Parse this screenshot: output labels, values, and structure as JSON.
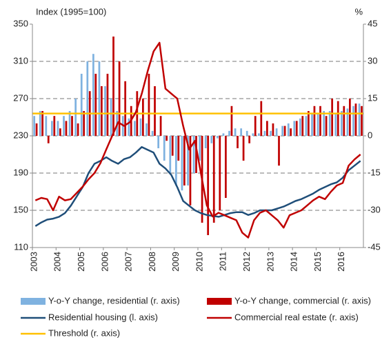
{
  "chart_data": {
    "type": "combo",
    "y_label": "Index (1995=100)",
    "y2_label": "%",
    "categories": [
      "2003",
      null,
      null,
      null,
      "2004",
      null,
      null,
      null,
      "2005",
      null,
      null,
      null,
      "2006",
      null,
      null,
      null,
      "2007",
      null,
      null,
      null,
      "2008",
      null,
      null,
      null,
      "2009",
      null,
      null,
      null,
      "2010",
      null,
      null,
      null,
      "2011",
      null,
      null,
      null,
      "2012",
      null,
      null,
      null,
      "2013",
      null,
      null,
      null,
      "2014",
      null,
      null,
      null,
      "2015",
      null,
      null,
      null,
      "2016",
      null,
      null,
      null
    ],
    "ylim": [
      110,
      350
    ],
    "yticks": [
      110,
      150,
      190,
      230,
      270,
      310,
      350
    ],
    "y2lim": [
      -45,
      45
    ],
    "y2ticks": [
      -45,
      -30,
      -15,
      0,
      15,
      30,
      45
    ],
    "grid": true,
    "series": [
      {
        "name": "Y-o-Y change, residential (r. axis)",
        "type": "bar",
        "axis": "y2",
        "color": "#7fb2e0",
        "values": [
          8,
          10,
          8,
          6,
          6,
          8,
          10,
          15,
          25,
          30,
          33,
          30,
          20,
          15,
          10,
          8,
          7,
          6,
          7,
          5,
          2,
          -5,
          -10,
          -15,
          -20,
          -22,
          -20,
          -15,
          -10,
          -5,
          -3,
          -1,
          1,
          2,
          3,
          3,
          2,
          1,
          1,
          2,
          2,
          3,
          4,
          5,
          6,
          7,
          8,
          9,
          9,
          10,
          10,
          9,
          10,
          11,
          12,
          13
        ]
      },
      {
        "name": "Y-o-Y change, commercial (r. axis)",
        "type": "bar",
        "axis": "y2",
        "color": "#c00000",
        "values": [
          5,
          10,
          -3,
          8,
          3,
          6,
          8,
          5,
          10,
          18,
          25,
          20,
          25,
          40,
          30,
          22,
          12,
          18,
          15,
          25,
          20,
          8,
          -2,
          -8,
          -10,
          -20,
          -28,
          -15,
          -35,
          -40,
          -35,
          -30,
          -25,
          12,
          -5,
          -10,
          -3,
          8,
          14,
          6,
          5,
          -12,
          4,
          3,
          6,
          8,
          10,
          12,
          12,
          8,
          15,
          14,
          12,
          15,
          13,
          12
        ]
      },
      {
        "name": "Residential housing (l. axis)",
        "type": "line",
        "axis": "y",
        "color": "#1f4e79",
        "values": [
          133,
          137,
          140,
          141,
          143,
          147,
          155,
          165,
          175,
          190,
          200,
          203,
          207,
          203,
          200,
          205,
          207,
          212,
          218,
          215,
          212,
          200,
          195,
          188,
          175,
          160,
          155,
          150,
          147,
          145,
          144,
          143,
          145,
          147,
          148,
          148,
          145,
          147,
          150,
          150,
          150,
          152,
          154,
          157,
          160,
          162,
          165,
          168,
          172,
          175,
          178,
          180,
          185,
          193,
          198,
          203
        ]
      },
      {
        "name": "Commercial real estate (r. axis)",
        "type": "line",
        "axis": "y2",
        "color": "#c00000",
        "values": [
          -26,
          -25,
          -25.5,
          -30,
          -24.5,
          -26,
          -25.5,
          -23,
          -20.5,
          -17.5,
          -15,
          -11,
          -5.5,
          0,
          5.5,
          4,
          5.5,
          9.5,
          17,
          26,
          34,
          37.5,
          19,
          17,
          15,
          4,
          -5.5,
          -2,
          -15,
          -28,
          -32.5,
          -31,
          -32,
          -33,
          -34,
          -39,
          -41,
          -34,
          -31,
          -30,
          -32,
          -34,
          -37,
          -32,
          -31,
          -30,
          -28,
          -26,
          -24.5,
          -25.5,
          -22.5,
          -20,
          -19,
          -12,
          -9.5,
          -7.5
        ]
      }
    ],
    "threshold": {
      "name": "Threshold (r. axis)",
      "value": 9,
      "color": "#ffc000"
    }
  }
}
